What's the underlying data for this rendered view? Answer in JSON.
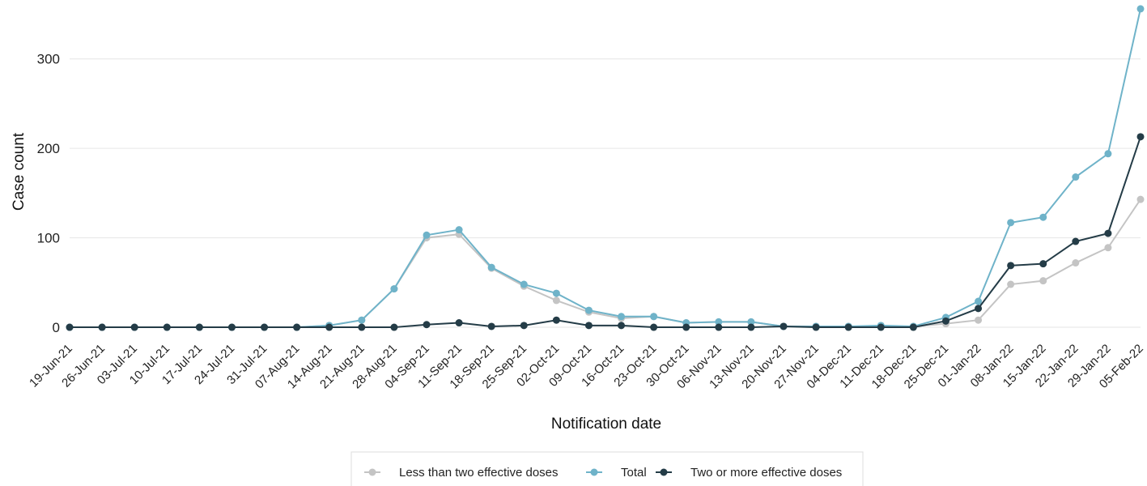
{
  "chart_data": {
    "type": "line",
    "xlabel": "Notification date",
    "ylabel": "Case count",
    "ylim": [
      -9,
      355
    ],
    "yticks": [
      0,
      100,
      200,
      300
    ],
    "grid": "horizontal",
    "legend_position": "bottom",
    "categories": [
      "19-Jun-21",
      "26-Jun-21",
      "03-Jul-21",
      "10-Jul-21",
      "17-Jul-21",
      "24-Jul-21",
      "31-Jul-21",
      "07-Aug-21",
      "14-Aug-21",
      "21-Aug-21",
      "28-Aug-21",
      "04-Sep-21",
      "11-Sep-21",
      "18-Sep-21",
      "25-Sep-21",
      "02-Oct-21",
      "09-Oct-21",
      "16-Oct-21",
      "23-Oct-21",
      "30-Oct-21",
      "06-Nov-21",
      "13-Nov-21",
      "20-Nov-21",
      "27-Nov-21",
      "04-Dec-21",
      "11-Dec-21",
      "18-Dec-21",
      "25-Dec-21",
      "01-Jan-22",
      "08-Jan-22",
      "15-Jan-22",
      "22-Jan-22",
      "29-Jan-22",
      "05-Feb-22"
    ],
    "series": [
      {
        "name": "Less than two effective doses",
        "color": "#c4c4c4",
        "values": [
          0,
          0,
          0,
          0,
          0,
          0,
          0,
          0,
          2,
          8,
          43,
          100,
          104,
          66,
          46,
          30,
          17,
          10,
          12,
          5,
          6,
          6,
          1,
          1,
          1,
          1,
          1,
          4,
          8,
          48,
          52,
          72,
          89,
          143
        ]
      },
      {
        "name": "Total",
        "color": "#6fb3c9",
        "values": [
          0,
          0,
          0,
          0,
          0,
          0,
          0,
          0,
          2,
          8,
          43,
          103,
          109,
          67,
          48,
          38,
          19,
          12,
          12,
          5,
          6,
          6,
          1,
          1,
          1,
          2,
          1,
          11,
          29,
          117,
          123,
          168,
          194,
          356
        ]
      },
      {
        "name": "Two or more effective doses",
        "color": "#243c47",
        "values": [
          0,
          0,
          0,
          0,
          0,
          0,
          0,
          0,
          0,
          0,
          0,
          3,
          5,
          1,
          2,
          8,
          2,
          2,
          0,
          0,
          0,
          0,
          1,
          0,
          0,
          0,
          0,
          7,
          21,
          69,
          71,
          96,
          105,
          213
        ]
      }
    ]
  }
}
